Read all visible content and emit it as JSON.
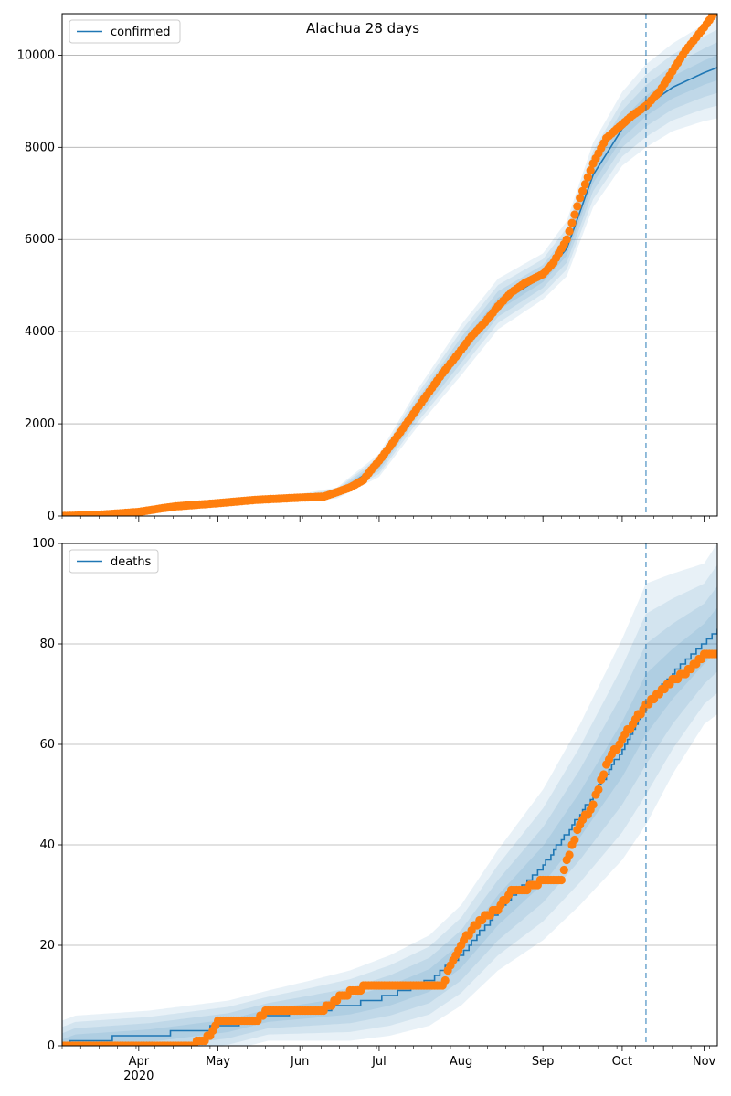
{
  "title": "Alachua 28 days",
  "colors": {
    "model": "#1f77b4",
    "observed": "#ff7f0e",
    "band": "#1f77b4",
    "grid": "#b0b0b0",
    "vline": "#1f77b4"
  },
  "x_axis": {
    "start": "2020-03-03",
    "end": "2020-11-06",
    "month_ticks": [
      {
        "date": "2020-04-01",
        "label": "Apr",
        "sublabel": "2020"
      },
      {
        "date": "2020-05-01",
        "label": "May",
        "sublabel": ""
      },
      {
        "date": "2020-06-01",
        "label": "Jun",
        "sublabel": ""
      },
      {
        "date": "2020-07-01",
        "label": "Jul",
        "sublabel": ""
      },
      {
        "date": "2020-08-01",
        "label": "Aug",
        "sublabel": ""
      },
      {
        "date": "2020-09-01",
        "label": "Sep",
        "sublabel": ""
      },
      {
        "date": "2020-10-01",
        "label": "Oct",
        "sublabel": ""
      },
      {
        "date": "2020-11-01",
        "label": "Nov",
        "sublabel": ""
      }
    ],
    "forecast_start": "2020-10-10"
  },
  "chart_data": [
    {
      "type": "line",
      "legend": "confirmed",
      "legend_position": "upper-left",
      "grid": true,
      "ylim": [
        0,
        10900
      ],
      "yticks": [
        0,
        2000,
        4000,
        6000,
        8000,
        10000
      ],
      "observed": {
        "dates": [
          "2020-03-03",
          "2020-03-15",
          "2020-03-25",
          "2020-04-01",
          "2020-04-10",
          "2020-04-15",
          "2020-05-01",
          "2020-05-15",
          "2020-06-01",
          "2020-06-10",
          "2020-06-15",
          "2020-06-20",
          "2020-06-25",
          "2020-06-28",
          "2020-07-01",
          "2020-07-05",
          "2020-07-10",
          "2020-07-15",
          "2020-07-20",
          "2020-07-25",
          "2020-08-01",
          "2020-08-05",
          "2020-08-10",
          "2020-08-15",
          "2020-08-20",
          "2020-08-25",
          "2020-09-01",
          "2020-09-05",
          "2020-09-10",
          "2020-09-15",
          "2020-09-20",
          "2020-09-25",
          "2020-10-01",
          "2020-10-05",
          "2020-10-10",
          "2020-10-15",
          "2020-10-20",
          "2020-10-25",
          "2020-11-01",
          "2020-11-06"
        ],
        "values": [
          0,
          20,
          60,
          90,
          170,
          210,
          280,
          350,
          400,
          420,
          520,
          620,
          780,
          1000,
          1200,
          1500,
          1900,
          2300,
          2700,
          3100,
          3600,
          3900,
          4200,
          4550,
          4850,
          5050,
          5250,
          5500,
          6000,
          6900,
          7650,
          8200,
          8500,
          8700,
          8900,
          9200,
          9650,
          10100,
          10600,
          11000
        ]
      },
      "model": {
        "dates": [
          "2020-03-03",
          "2020-04-01",
          "2020-05-01",
          "2020-06-01",
          "2020-06-15",
          "2020-07-01",
          "2020-07-15",
          "2020-08-01",
          "2020-08-15",
          "2020-09-01",
          "2020-09-10",
          "2020-09-20",
          "2020-10-01",
          "2020-10-10",
          "2020-10-20",
          "2020-11-01",
          "2020-11-06"
        ],
        "values": [
          0,
          90,
          280,
          400,
          500,
          1100,
          2300,
          3600,
          4600,
          5200,
          5800,
          7400,
          8400,
          8900,
          9300,
          9620,
          9730
        ]
      },
      "band_spread": [
        0,
        30,
        60,
        80,
        120,
        250,
        400,
        550,
        550,
        500,
        600,
        700,
        800,
        900,
        950,
        1050,
        1100
      ]
    },
    {
      "type": "line",
      "legend": "deaths",
      "legend_position": "upper-left",
      "grid": true,
      "ylim": [
        0,
        100
      ],
      "yticks": [
        0,
        20,
        40,
        60,
        80,
        100
      ],
      "observed": {
        "dates": [
          "2020-03-03",
          "2020-04-20",
          "2020-04-25",
          "2020-04-28",
          "2020-05-01",
          "2020-05-15",
          "2020-05-20",
          "2020-06-10",
          "2020-06-12",
          "2020-06-17",
          "2020-06-27",
          "2020-07-25",
          "2020-07-28",
          "2020-08-01",
          "2020-08-05",
          "2020-08-10",
          "2020-08-15",
          "2020-08-20",
          "2020-08-25",
          "2020-09-01",
          "2020-09-08",
          "2020-09-12",
          "2020-09-15",
          "2020-09-20",
          "2020-09-25",
          "2020-10-01",
          "2020-10-05",
          "2020-10-10",
          "2020-10-15",
          "2020-10-20",
          "2020-10-25",
          "2020-11-01",
          "2020-11-06"
        ],
        "values": [
          0,
          0,
          1,
          2,
          5,
          5,
          7,
          7,
          8,
          10,
          12,
          12,
          16,
          20,
          23,
          26,
          27,
          31,
          31,
          33,
          33,
          40,
          44,
          48,
          56,
          61,
          64,
          68,
          70,
          73,
          74,
          78,
          78
        ]
      },
      "model": {
        "dates": [
          "2020-03-03",
          "2020-03-08",
          "2020-04-05",
          "2020-04-20",
          "2020-05-05",
          "2020-05-20",
          "2020-06-05",
          "2020-06-20",
          "2020-07-05",
          "2020-07-20",
          "2020-08-01",
          "2020-08-15",
          "2020-09-01",
          "2020-09-15",
          "2020-10-01",
          "2020-10-10",
          "2020-10-20",
          "2020-11-01",
          "2020-11-06"
        ],
        "values": [
          0,
          1,
          2,
          3,
          4,
          6,
          7,
          8,
          10,
          13,
          18,
          27,
          36,
          46,
          59,
          68,
          74,
          80,
          83
        ]
      },
      "band_spread": [
        5,
        5,
        5,
        5,
        5,
        5,
        6,
        7,
        8,
        9,
        10,
        12,
        15,
        18,
        22,
        24,
        20,
        16,
        17
      ]
    }
  ]
}
